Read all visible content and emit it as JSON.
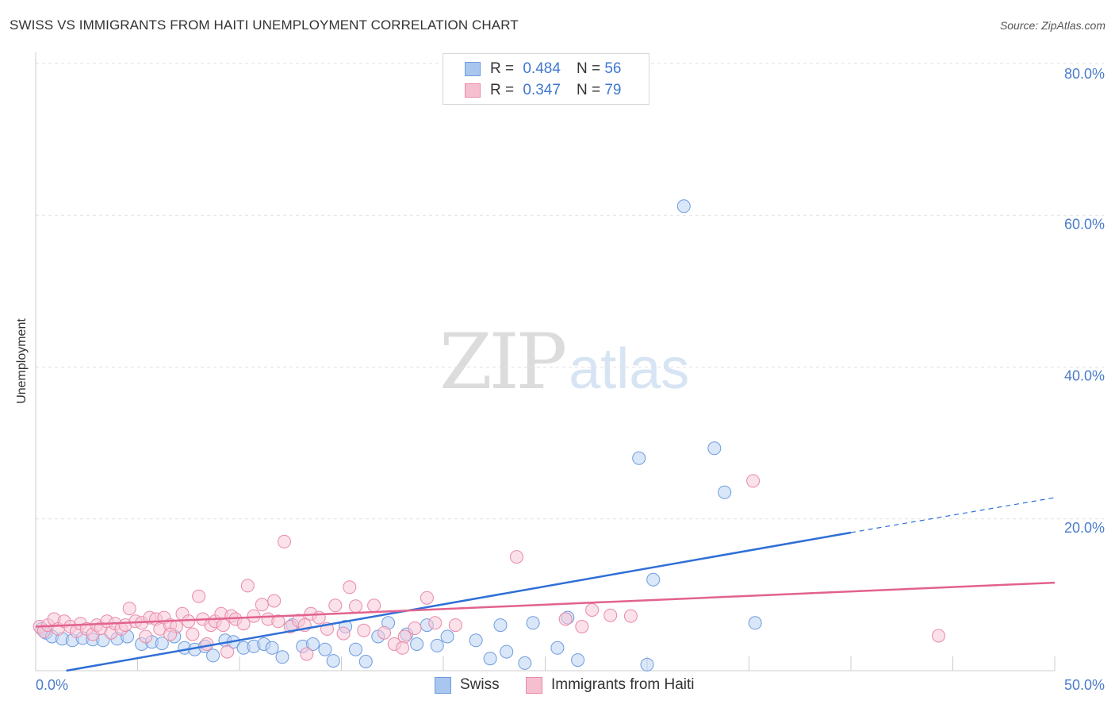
{
  "title": "SWISS VS IMMIGRANTS FROM HAITI UNEMPLOYMENT CORRELATION CHART",
  "source": "Source: ZipAtlas.com",
  "watermark": {
    "zip": "ZIP",
    "atlas": "atlas"
  },
  "legend": {
    "rows": [
      {
        "r_label": "R =",
        "r_value": "0.484",
        "n_label": "N =",
        "n_value": "56",
        "color": "#a9c6ef",
        "border": "#6d9be0"
      },
      {
        "r_label": "R =",
        "r_value": "0.347",
        "n_label": "N =",
        "n_value": "79",
        "color": "#f6bfd0",
        "border": "#e98aa9"
      }
    ]
  },
  "bottom_legend": [
    "Swiss",
    "Immigrants from Haiti"
  ],
  "chart_data": {
    "type": "scatter",
    "title": "SWISS VS IMMIGRANTS FROM HAITI UNEMPLOYMENT CORRELATION CHART",
    "xlabel": "",
    "ylabel": "Unemployment",
    "xlim": [
      0,
      50
    ],
    "ylim": [
      0,
      80
    ],
    "x_tick_labels": [
      "0.0%",
      "50.0%"
    ],
    "y_ticks": [
      20,
      40,
      60,
      80
    ],
    "y_tick_labels": [
      "20.0%",
      "40.0%",
      "60.0%",
      "80.0%"
    ],
    "grid": true,
    "series": [
      {
        "name": "Swiss",
        "color": "#6d9be0",
        "fill": "#bcd3f2",
        "points": [
          [
            0.3,
            5.5
          ],
          [
            0.5,
            5.0
          ],
          [
            0.8,
            4.5
          ],
          [
            1.3,
            4.2
          ],
          [
            1.8,
            4.0
          ],
          [
            2.3,
            4.3
          ],
          [
            2.8,
            4.1
          ],
          [
            3.3,
            4.0
          ],
          [
            4.0,
            4.2
          ],
          [
            4.5,
            4.5
          ],
          [
            5.2,
            3.5
          ],
          [
            5.7,
            3.8
          ],
          [
            6.2,
            3.6
          ],
          [
            6.8,
            4.5
          ],
          [
            7.3,
            3.0
          ],
          [
            7.8,
            2.8
          ],
          [
            8.3,
            3.2
          ],
          [
            8.7,
            2.0
          ],
          [
            9.3,
            4.0
          ],
          [
            9.7,
            3.8
          ],
          [
            10.2,
            3.0
          ],
          [
            10.7,
            3.2
          ],
          [
            11.2,
            3.5
          ],
          [
            11.6,
            3.0
          ],
          [
            12.1,
            1.8
          ],
          [
            12.6,
            6.0
          ],
          [
            13.1,
            3.2
          ],
          [
            13.6,
            3.5
          ],
          [
            14.2,
            2.8
          ],
          [
            14.6,
            1.3
          ],
          [
            15.2,
            5.8
          ],
          [
            15.7,
            2.8
          ],
          [
            16.2,
            1.2
          ],
          [
            16.8,
            4.5
          ],
          [
            17.3,
            6.3
          ],
          [
            18.2,
            4.8
          ],
          [
            18.7,
            3.5
          ],
          [
            19.2,
            6.0
          ],
          [
            19.7,
            3.3
          ],
          [
            20.2,
            4.5
          ],
          [
            21.6,
            4.0
          ],
          [
            22.3,
            1.6
          ],
          [
            22.8,
            6.0
          ],
          [
            23.1,
            2.5
          ],
          [
            24.0,
            1.0
          ],
          [
            24.4,
            6.3
          ],
          [
            25.6,
            3.0
          ],
          [
            26.1,
            7.0
          ],
          [
            26.6,
            1.4
          ],
          [
            29.6,
            28.0
          ],
          [
            30.3,
            12.0
          ],
          [
            31.8,
            61.2
          ],
          [
            33.3,
            29.3
          ],
          [
            33.8,
            23.5
          ],
          [
            35.3,
            6.3
          ],
          [
            30.0,
            0.8
          ]
        ]
      },
      {
        "name": "Immigrants from Haiti",
        "color": "#e98aa9",
        "fill": "#f7c9d7",
        "points": [
          [
            0.2,
            5.8
          ],
          [
            0.4,
            5.2
          ],
          [
            0.6,
            6.0
          ],
          [
            0.9,
            6.8
          ],
          [
            1.1,
            5.5
          ],
          [
            1.4,
            6.5
          ],
          [
            1.7,
            5.8
          ],
          [
            2.0,
            5.2
          ],
          [
            2.2,
            6.2
          ],
          [
            2.5,
            5.5
          ],
          [
            2.8,
            4.8
          ],
          [
            3.0,
            6.0
          ],
          [
            3.2,
            5.6
          ],
          [
            3.5,
            6.5
          ],
          [
            3.7,
            5.0
          ],
          [
            3.9,
            6.2
          ],
          [
            4.2,
            5.5
          ],
          [
            4.4,
            6.0
          ],
          [
            4.6,
            8.2
          ],
          [
            4.9,
            6.5
          ],
          [
            5.2,
            6.3
          ],
          [
            5.4,
            4.5
          ],
          [
            5.6,
            7.0
          ],
          [
            5.9,
            6.8
          ],
          [
            6.1,
            5.5
          ],
          [
            6.3,
            7.0
          ],
          [
            6.6,
            6.0
          ],
          [
            6.9,
            5.8
          ],
          [
            7.2,
            7.5
          ],
          [
            7.5,
            6.5
          ],
          [
            7.7,
            4.8
          ],
          [
            8.0,
            9.8
          ],
          [
            8.2,
            6.8
          ],
          [
            8.4,
            3.5
          ],
          [
            8.6,
            6.0
          ],
          [
            8.8,
            6.5
          ],
          [
            9.1,
            7.5
          ],
          [
            9.4,
            2.5
          ],
          [
            9.6,
            7.2
          ],
          [
            9.8,
            6.8
          ],
          [
            10.2,
            6.2
          ],
          [
            10.4,
            11.2
          ],
          [
            10.7,
            7.2
          ],
          [
            11.1,
            8.7
          ],
          [
            11.4,
            6.8
          ],
          [
            11.7,
            9.2
          ],
          [
            11.9,
            6.5
          ],
          [
            12.2,
            17.0
          ],
          [
            12.5,
            5.8
          ],
          [
            12.9,
            6.6
          ],
          [
            13.2,
            6.0
          ],
          [
            13.5,
            7.5
          ],
          [
            13.9,
            7.0
          ],
          [
            14.3,
            5.5
          ],
          [
            14.7,
            8.6
          ],
          [
            15.1,
            4.9
          ],
          [
            15.4,
            11.0
          ],
          [
            15.7,
            8.5
          ],
          [
            16.1,
            5.3
          ],
          [
            16.6,
            8.6
          ],
          [
            17.1,
            5.0
          ],
          [
            17.6,
            3.5
          ],
          [
            18.1,
            4.5
          ],
          [
            18.6,
            5.6
          ],
          [
            19.2,
            9.6
          ],
          [
            19.6,
            6.3
          ],
          [
            20.6,
            6.0
          ],
          [
            23.6,
            15.0
          ],
          [
            26.0,
            6.8
          ],
          [
            26.8,
            5.8
          ],
          [
            27.3,
            8.0
          ],
          [
            28.2,
            7.3
          ],
          [
            29.2,
            7.2
          ],
          [
            35.2,
            25.0
          ],
          [
            44.3,
            4.6
          ],
          [
            13.3,
            2.2
          ],
          [
            18.0,
            3.0
          ],
          [
            9.2,
            6.0
          ],
          [
            6.6,
            4.8
          ]
        ]
      }
    ],
    "trend_lines": [
      {
        "series": "Swiss",
        "x0": 1.5,
        "y0": 0,
        "x1": 40,
        "y1": 18.2,
        "dash_to_x": 50,
        "dash_to_y": 22.8
      },
      {
        "series": "Immigrants from Haiti",
        "x0": 0,
        "y0": 5.8,
        "x1": 50,
        "y1": 11.6
      }
    ]
  }
}
